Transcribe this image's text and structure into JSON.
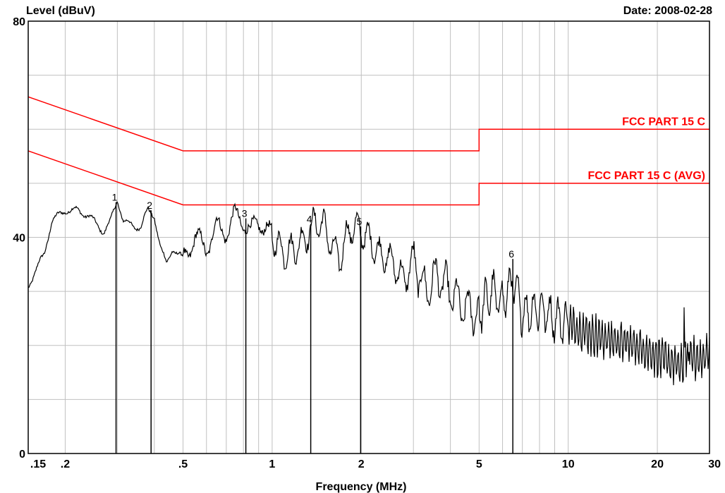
{
  "header": {
    "ylabel": "Level (dBuV)",
    "date": "Date: 2008-02-28"
  },
  "colors": {
    "background": "#ffffff",
    "grid": "#c0c0c0",
    "trace": "#000000",
    "limit": "#ff0000"
  },
  "chart_data": {
    "type": "line",
    "xlabel": "Frequency (MHz)",
    "ylabel": "Level (dBuV)",
    "x_scale": "log",
    "xlim": [
      0.15,
      30
    ],
    "ylim": [
      0,
      80
    ],
    "grid": true,
    "x_ticks": [
      {
        "value": 0.15,
        "label": ".15"
      },
      {
        "value": 0.2,
        "label": ".2"
      },
      {
        "value": 0.5,
        "label": ".5"
      },
      {
        "value": 1,
        "label": "1"
      },
      {
        "value": 2,
        "label": "2"
      },
      {
        "value": 5,
        "label": "5"
      },
      {
        "value": 10,
        "label": "10"
      },
      {
        "value": 20,
        "label": "20"
      },
      {
        "value": 30,
        "label": "30"
      }
    ],
    "y_ticks": [
      {
        "value": 0,
        "label": "0"
      },
      {
        "value": 40,
        "label": "40"
      },
      {
        "value": 80,
        "label": "80"
      }
    ],
    "series": [
      {
        "name": "FCC PART 15 C",
        "color": "#ff0000",
        "x": [
          0.15,
          0.5,
          0.5,
          5,
          5,
          30
        ],
        "y": [
          66,
          56,
          56,
          56,
          60,
          60
        ]
      },
      {
        "name": "FCC PART 15 C (AVG)",
        "color": "#ff0000",
        "x": [
          0.15,
          0.5,
          0.5,
          5,
          5,
          30
        ],
        "y": [
          56,
          46,
          46,
          46,
          50,
          50
        ]
      }
    ],
    "trace": {
      "color": "#000000",
      "x": [
        0.15,
        0.17,
        0.18,
        0.2,
        0.22,
        0.24,
        0.27,
        0.285,
        0.3,
        0.315,
        0.34,
        0.36,
        0.38,
        0.4,
        0.42,
        0.44,
        0.46,
        0.5,
        0.55,
        0.6,
        0.65,
        0.7,
        0.75,
        0.8,
        0.85,
        0.9,
        0.95,
        1.0,
        1.1,
        1.2,
        1.3,
        1.4,
        1.5,
        1.6,
        1.7,
        1.8,
        1.9,
        2.0,
        2.1,
        2.3,
        2.5,
        2.8,
        3.0,
        3.3,
        3.6,
        4.0,
        4.4,
        5.0,
        5.5,
        6.0,
        6.5,
        7.0,
        8.0,
        9.0,
        10.0,
        12.0,
        14.0,
        17.0,
        20.0,
        22.0,
        24.0,
        26.0,
        28.0,
        30.0
      ],
      "y": [
        31,
        37,
        43,
        45,
        45,
        44,
        41,
        43,
        47,
        43,
        42,
        42,
        45,
        44,
        38,
        35,
        38,
        36,
        40,
        38,
        42,
        41,
        44,
        43,
        41,
        43,
        42,
        40,
        37,
        38,
        40,
        43,
        42,
        38,
        36,
        41,
        42,
        41,
        40,
        37,
        36,
        32,
        36,
        30,
        33,
        30,
        27,
        26,
        30,
        28,
        32,
        26,
        27,
        25,
        24,
        22,
        21,
        20,
        18,
        17,
        16,
        18,
        17,
        19
      ]
    },
    "markers": [
      {
        "label": "1",
        "x": 0.297,
        "y": 46.5
      },
      {
        "label": "2",
        "x": 0.39,
        "y": 45
      },
      {
        "label": "3",
        "x": 0.815,
        "y": 43.5
      },
      {
        "label": "4",
        "x": 1.35,
        "y": 42.5
      },
      {
        "label": "5",
        "x": 1.99,
        "y": 42
      },
      {
        "label": "6",
        "x": 6.5,
        "y": 36
      }
    ]
  }
}
